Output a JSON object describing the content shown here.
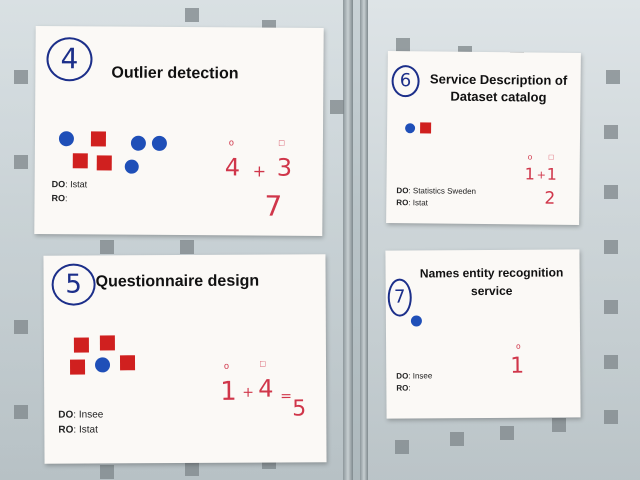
{
  "posters": [
    {
      "number": "4",
      "title": "Outlier detection",
      "do_label": "DO",
      "do_value": "Istat",
      "ro_label": "RO",
      "ro_value": "",
      "votes": {
        "a": "4",
        "plus": "+",
        "b": "3",
        "total": "7"
      }
    },
    {
      "number": "5",
      "title": "Questionnaire design",
      "do_label": "DO",
      "do_value": "Insee",
      "ro_label": "RO",
      "ro_value": "Istat",
      "votes": {
        "a": "1",
        "plus": "+",
        "b": "4",
        "eq": "=",
        "total": "5"
      }
    },
    {
      "number": "6",
      "title_line1": "Service Description of",
      "title_line2": "Dataset catalog",
      "do_label": "DO",
      "do_value": "Statistics Sweden",
      "ro_label": "RO",
      "ro_value": "Istat",
      "votes": {
        "a": "1",
        "plus": "+",
        "b": "1",
        "total": "2"
      }
    },
    {
      "number": "7",
      "title_line1": "Names entity recognition",
      "title_line2": "service",
      "do_label": "DO",
      "do_value": "Insee",
      "ro_label": "RO",
      "ro_value": "",
      "votes": {
        "a": "1"
      }
    }
  ],
  "colors": {
    "circle": "#1f4fb8",
    "square": "#d0201f",
    "ink": "#d0364a",
    "marker": "#1c2f8a"
  },
  "legend_marks": {
    "circle": "o",
    "square": "□"
  }
}
